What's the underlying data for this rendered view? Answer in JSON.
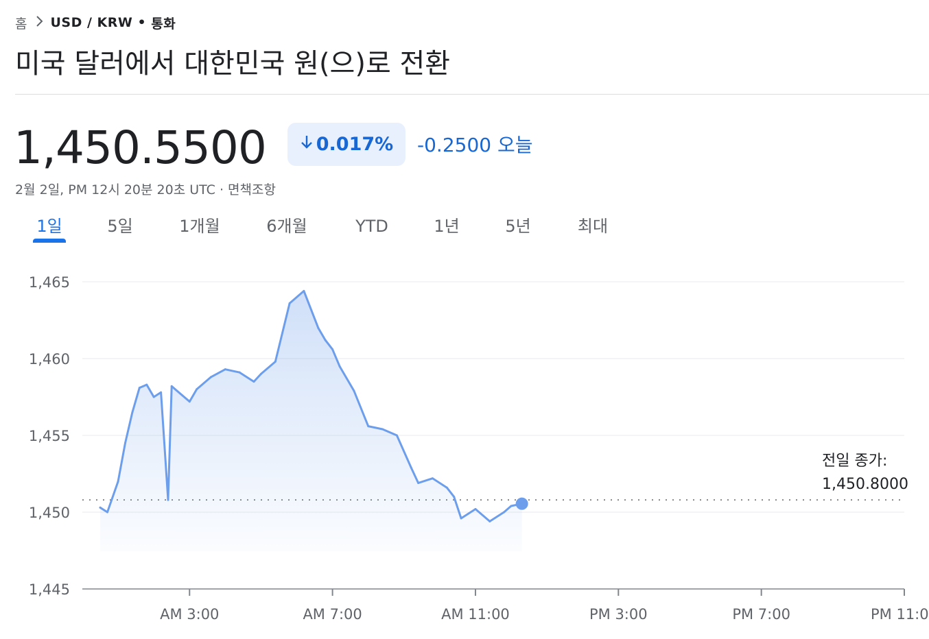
{
  "breadcrumb": {
    "home": "홈",
    "pair": "USD / KRW",
    "category": "통화"
  },
  "title": "미국 달러에서 대한민국 원(으)로 전환",
  "quote": {
    "price": "1,450.5500",
    "change_percent": "0.017%",
    "change_direction": "down",
    "change_abs": "-0.2500 오늘",
    "timestamp": "2월 2일, PM 12시 20분 20초 UTC · 면책조항"
  },
  "tabs": [
    "1일",
    "5일",
    "1개월",
    "6개월",
    "YTD",
    "1년",
    "5년",
    "최대"
  ],
  "active_tab": "1일",
  "colors": {
    "accent": "#1a73e8",
    "line": "#6d9eeb",
    "negative": "#1967d2",
    "badge_bg": "#e8f0fe"
  },
  "chart_data": {
    "type": "area",
    "x_unit": "hours",
    "x_tick_labels": [
      "AM 3:00",
      "AM 7:00",
      "AM 11:00",
      "PM 3:00",
      "PM 7:00",
      "PM 11:00"
    ],
    "x_tick_values": [
      3,
      7,
      11,
      15,
      19,
      23
    ],
    "xlim": [
      0,
      23
    ],
    "y_tick_labels": [
      "1,465",
      "1,460",
      "1,455",
      "1,450",
      "1,445"
    ],
    "y_tick_values": [
      1465,
      1460,
      1455,
      1450,
      1445
    ],
    "ylim": [
      1445,
      1465
    ],
    "grid": true,
    "series": [
      {
        "x": [
          0.5,
          0.7,
          1.0,
          1.2,
          1.4,
          1.6,
          1.8,
          2.0,
          2.2,
          2.4,
          2.5,
          2.8,
          3.0,
          3.2,
          3.6,
          4.0,
          4.4,
          4.8,
          5.0,
          5.4,
          5.8,
          6.2,
          6.6,
          6.8,
          7.0,
          7.2,
          7.6,
          8.0,
          8.4,
          8.8,
          9.2,
          9.4,
          9.8,
          10.2,
          10.4,
          10.6,
          11.0,
          11.4,
          11.8,
          12.0,
          12.3
        ],
        "values": [
          1450.3,
          1450.0,
          1452.0,
          1454.5,
          1456.5,
          1458.1,
          1458.3,
          1457.5,
          1457.8,
          1450.8,
          1458.2,
          1457.6,
          1457.2,
          1458.0,
          1458.8,
          1459.3,
          1459.1,
          1458.5,
          1459.0,
          1459.8,
          1463.6,
          1464.4,
          1462.0,
          1461.2,
          1460.6,
          1459.5,
          1457.9,
          1455.6,
          1455.4,
          1455.0,
          1452.9,
          1451.9,
          1452.2,
          1451.6,
          1451.0,
          1449.6,
          1450.2,
          1449.4,
          1450.0,
          1450.4,
          1450.55
        ]
      }
    ],
    "reference_line": {
      "label": "전일 종가:",
      "value_label": "1,450.8000",
      "value": 1450.8
    }
  }
}
